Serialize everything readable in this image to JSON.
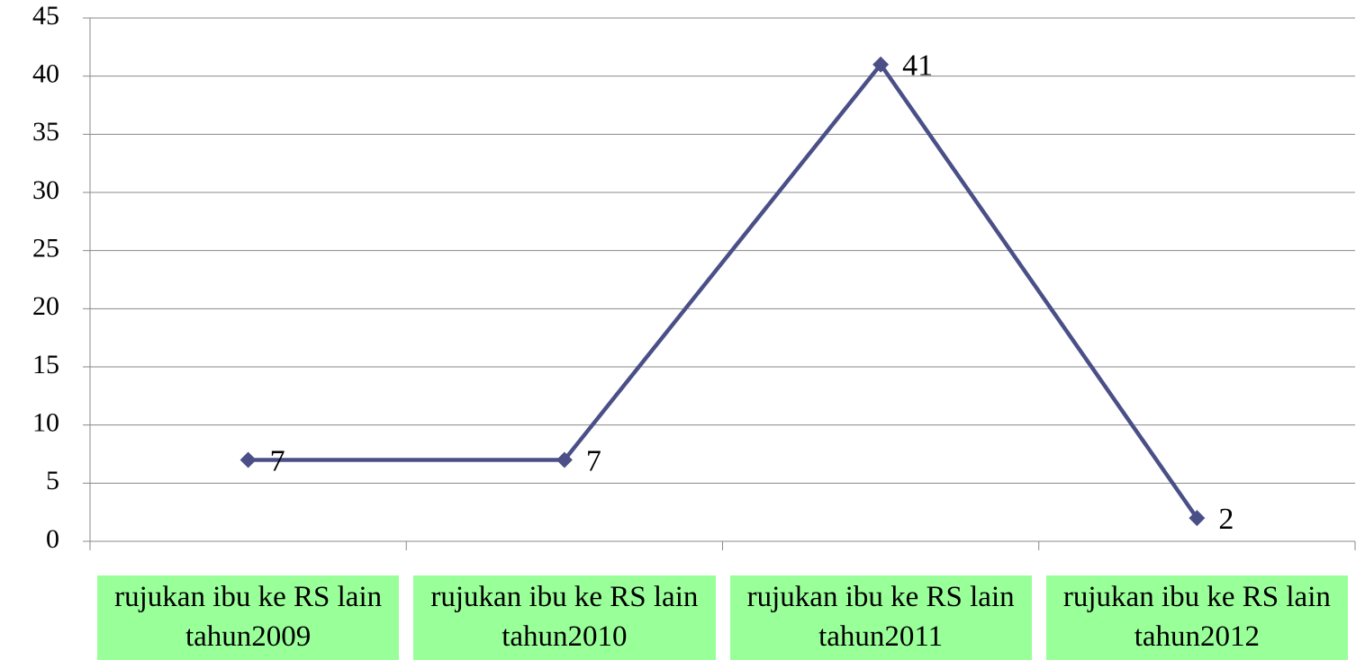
{
  "chart_data": {
    "type": "line",
    "categories": [
      "rujukan ibu ke RS lain tahun2009",
      "rujukan ibu ke RS lain tahun2010",
      "rujukan ibu ke RS lain tahun2011",
      "rujukan ibu ke RS lain tahun2012"
    ],
    "values": [
      7,
      7,
      41,
      2
    ],
    "color": "#4a5087",
    "ylim": [
      0,
      45
    ],
    "yticks": [
      0,
      5,
      10,
      15,
      20,
      25,
      30,
      35,
      40,
      45
    ],
    "grid": true
  }
}
